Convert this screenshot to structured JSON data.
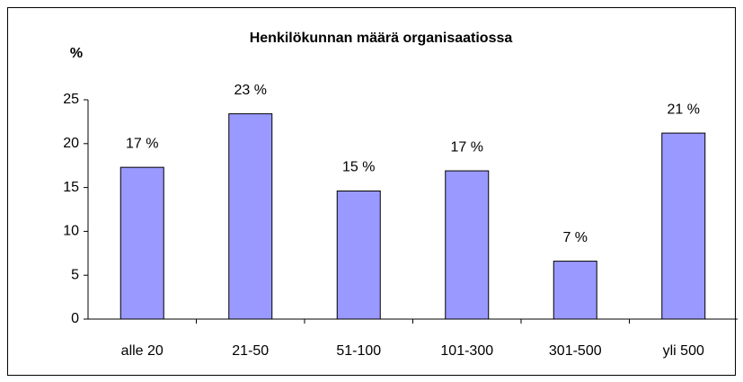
{
  "chart_data": {
    "type": "bar",
    "title": "Henkilökunnan määrä organisaatiossa",
    "ylabel": "%",
    "categories": [
      "alle 20",
      "21-50",
      "51-100",
      "101-300",
      "301-500",
      "yli 500"
    ],
    "values": [
      17.3,
      23.4,
      14.6,
      16.9,
      6.6,
      21.2
    ],
    "value_labels": [
      "17 %",
      "23 %",
      "15 %",
      "17 %",
      "7 %",
      "21 %"
    ],
    "color": "#9999ff",
    "ylim": [
      0,
      25
    ],
    "yticks": [
      0,
      5,
      10,
      15,
      20,
      25
    ],
    "grid": false
  }
}
